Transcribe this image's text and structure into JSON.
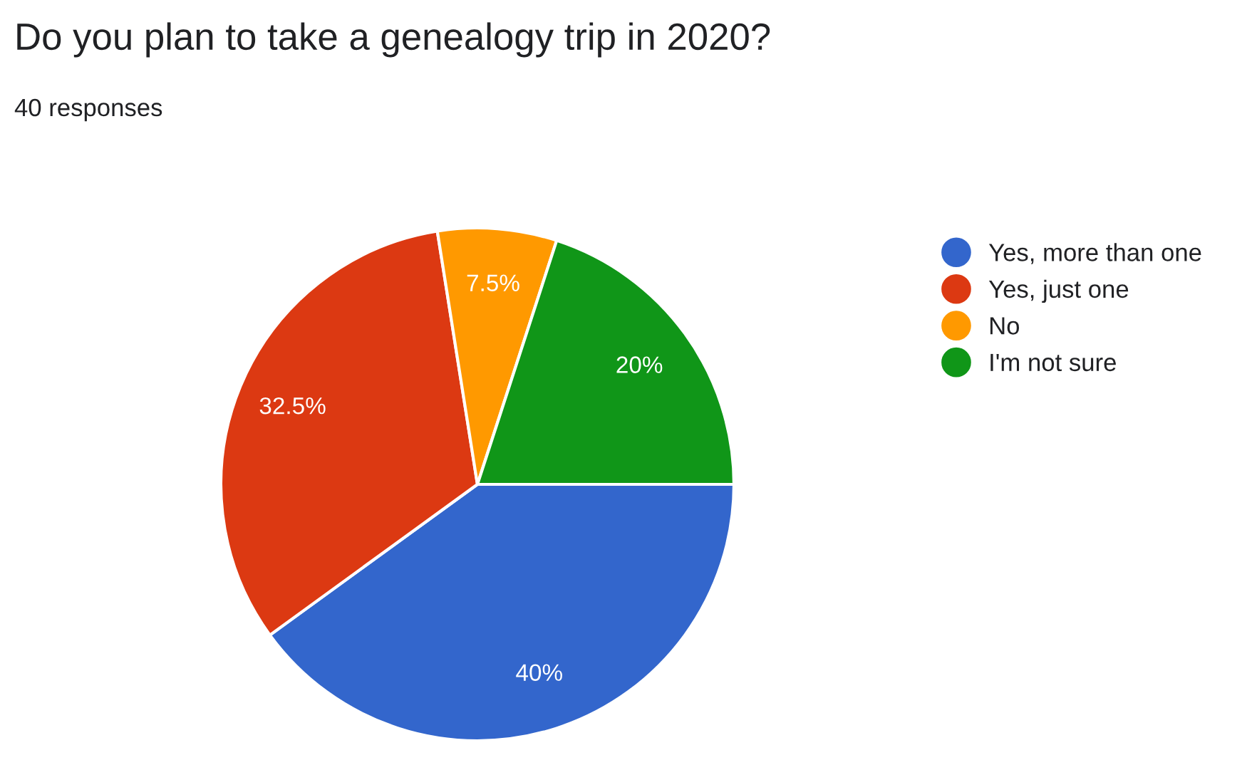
{
  "chart_data": {
    "type": "pie",
    "title": "Do you plan to take a genealogy trip in 2020?",
    "subtitle": "40 responses",
    "categories": [
      "Yes, more than one",
      "Yes, just one",
      "No",
      "I'm not sure"
    ],
    "values": [
      40,
      32.5,
      7.5,
      20
    ],
    "colors": [
      "#3366cc",
      "#dc3912",
      "#ff9900",
      "#109618"
    ],
    "value_labels": [
      "40%",
      "32.5%",
      "7.5%",
      "20%"
    ],
    "legend": "right"
  }
}
